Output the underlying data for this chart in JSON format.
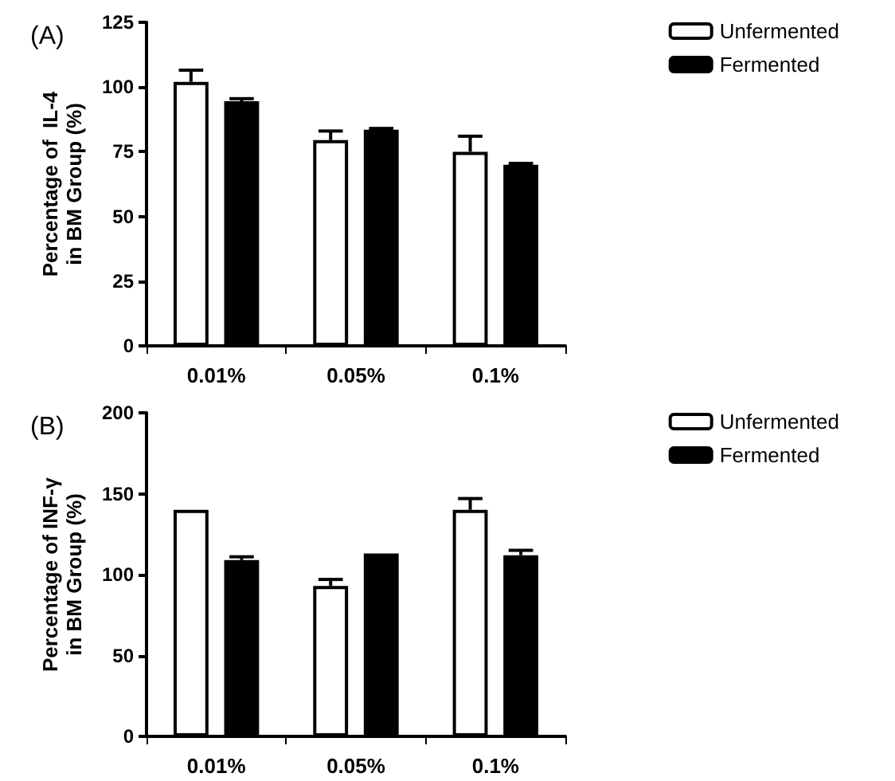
{
  "chart_data": [
    {
      "type": "bar",
      "title": "(A)",
      "ylabel": "Percentage of  IL-4\nin BM Group (%)",
      "categories": [
        "0.01%",
        "0.05%",
        "0.1%"
      ],
      "series": [
        {
          "name": "Unfermented",
          "color": "#ffffff",
          "values": [
            102,
            79.5,
            75
          ],
          "errors": [
            [
              102,
              106.5
            ],
            [
              79.5,
              83
            ],
            [
              75,
              81
            ]
          ]
        },
        {
          "name": "Fermented",
          "color": "#000000",
          "values": [
            94.5,
            83.5,
            70
          ],
          "errors": [
            [
              94.5,
              95.5
            ],
            [
              83.5,
              84
            ],
            [
              70,
              70.5
            ]
          ]
        }
      ],
      "ylim": [
        0,
        125
      ],
      "yticks": [
        0,
        25,
        50,
        75,
        100,
        125
      ],
      "grid": false,
      "legend": "top right"
    },
    {
      "type": "bar",
      "title": "(B)",
      "ylabel": "Percentage of INF-γ\nin BM Group (%)",
      "categories": [
        "0.01%",
        "0.05%",
        "0.1%"
      ],
      "series": [
        {
          "name": "Unfermented",
          "color": "#ffffff",
          "values": [
            140,
            93,
            140
          ],
          "errors": [
            null,
            [
              93,
              97
            ],
            [
              140,
              147
            ]
          ]
        },
        {
          "name": "Fermented",
          "color": "#000000",
          "values": [
            109,
            113,
            112
          ],
          "errors": [
            [
              109,
              111
            ],
            null,
            [
              112,
              115
            ]
          ]
        }
      ],
      "ylim": [
        0,
        200
      ],
      "yticks": [
        0,
        50,
        100,
        150,
        200
      ],
      "grid": false,
      "legend": "top right"
    }
  ]
}
